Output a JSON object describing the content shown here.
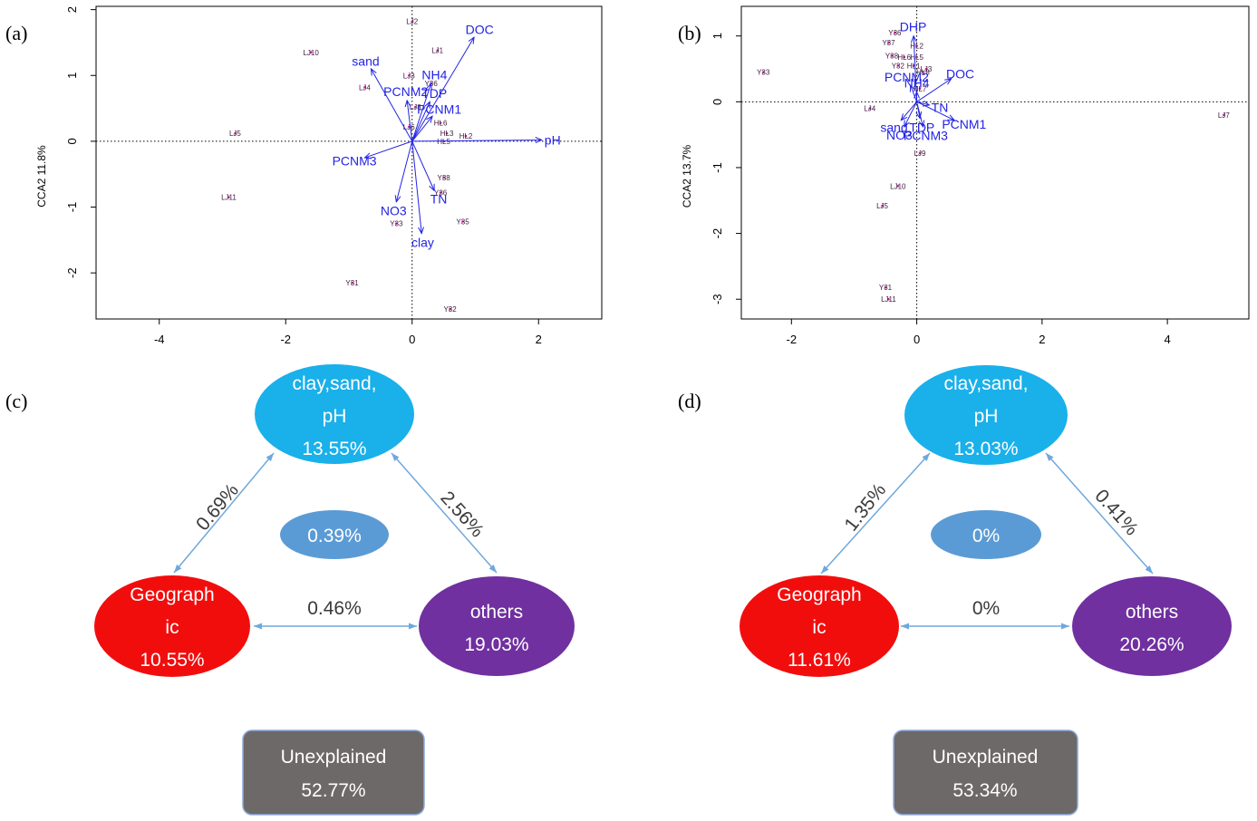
{
  "colors": {
    "env": "#2323e6",
    "site_text": "#3a1a3a",
    "site_dot": "#d01aa0",
    "soil": "#1ab0ea",
    "geo": "#f20d0d",
    "others": "#7030a0",
    "center": "#5b9bd5",
    "unexplained": "#6d6968",
    "connector": "#6fa8dc"
  },
  "chart_data": [
    {
      "panel": "(a)",
      "type": "scatter",
      "title": "",
      "xlabel": "",
      "ylabel": "CCA2 11.8%",
      "xlim": [
        -5,
        3
      ],
      "ylim": [
        -2.7,
        2.05
      ],
      "xticks": [
        -4,
        -2,
        0,
        2
      ],
      "yticks": [
        -2,
        -1,
        0,
        1,
        2
      ],
      "sites": [
        {
          "label": "LJ2",
          "x": 0.0,
          "y": 1.82
        },
        {
          "label": "LJ10",
          "x": -1.6,
          "y": 1.35
        },
        {
          "label": "LJ1",
          "x": 0.4,
          "y": 1.38
        },
        {
          "label": "LJ3",
          "x": -0.05,
          "y": 1.0
        },
        {
          "label": "LJ4",
          "x": -0.75,
          "y": 0.82
        },
        {
          "label": "Y36",
          "x": 0.3,
          "y": 0.88
        },
        {
          "label": "LJ8",
          "x": 0.05,
          "y": 0.52
        },
        {
          "label": "LJ6",
          "x": -0.05,
          "y": 0.22
        },
        {
          "label": "HL6",
          "x": 0.45,
          "y": 0.28
        },
        {
          "label": "HL3",
          "x": 0.55,
          "y": 0.12
        },
        {
          "label": "HL2",
          "x": 0.85,
          "y": 0.08
        },
        {
          "label": "HL5",
          "x": 0.5,
          "y": 0.0
        },
        {
          "label": "LJ5",
          "x": -2.8,
          "y": 0.12
        },
        {
          "label": "LJ11",
          "x": -2.9,
          "y": -0.85
        },
        {
          "label": "Y38",
          "x": 0.5,
          "y": -0.55
        },
        {
          "label": "Y36b",
          "x": 0.45,
          "y": -0.78
        },
        {
          "label": "Y33",
          "x": -0.25,
          "y": -1.25
        },
        {
          "label": "Y35",
          "x": 0.8,
          "y": -1.22
        },
        {
          "label": "Y31",
          "x": -0.95,
          "y": -2.15
        },
        {
          "label": "Y32",
          "x": 0.6,
          "y": -2.55
        }
      ],
      "arrows": [
        {
          "label": "DOC",
          "x": 0.98,
          "y": 1.58
        },
        {
          "label": "sand",
          "x": -0.65,
          "y": 1.1
        },
        {
          "label": "NH4",
          "x": 0.3,
          "y": 0.88
        },
        {
          "label": "PCNM2",
          "x": -0.08,
          "y": 0.62
        },
        {
          "label": "TDP",
          "x": 0.28,
          "y": 0.6
        },
        {
          "label": "PCNM1",
          "x": 0.32,
          "y": 0.38
        },
        {
          "label": "pH",
          "x": 2.05,
          "y": 0.02
        },
        {
          "label": "PCNM3",
          "x": -0.75,
          "y": -0.25
        },
        {
          "label": "TN",
          "x": 0.35,
          "y": -0.75
        },
        {
          "label": "NO3",
          "x": -0.25,
          "y": -0.92
        },
        {
          "label": "clay",
          "x": 0.15,
          "y": -1.4
        }
      ]
    },
    {
      "panel": "(b)",
      "type": "scatter",
      "title": "",
      "xlabel": "",
      "ylabel": "CCA2 13.7%",
      "xlim": [
        -2.8,
        5.3
      ],
      "ylim": [
        -3.3,
        1.45
      ],
      "xticks": [
        -2,
        0,
        2,
        4
      ],
      "yticks": [
        -3,
        -2,
        -1,
        0,
        1
      ],
      "sites": [
        {
          "label": "Y33",
          "x": -2.45,
          "y": 0.45
        },
        {
          "label": "LJ7",
          "x": 4.9,
          "y": -0.2
        },
        {
          "label": "Y36",
          "x": -0.35,
          "y": 1.05
        },
        {
          "label": "Y37",
          "x": -0.45,
          "y": 0.9
        },
        {
          "label": "HL2",
          "x": 0.0,
          "y": 0.85
        },
        {
          "label": "Y38",
          "x": -0.4,
          "y": 0.7
        },
        {
          "label": "HL6",
          "x": -0.2,
          "y": 0.68
        },
        {
          "label": "HL5",
          "x": 0.0,
          "y": 0.68
        },
        {
          "label": "Y32",
          "x": -0.3,
          "y": 0.55
        },
        {
          "label": "HL1",
          "x": -0.05,
          "y": 0.55
        },
        {
          "label": "HL8",
          "x": 0.1,
          "y": 0.45
        },
        {
          "label": "LJ3",
          "x": 0.15,
          "y": 0.5
        },
        {
          "label": "HL7",
          "x": 0.05,
          "y": 0.2
        },
        {
          "label": "LJ4",
          "x": -0.75,
          "y": -0.1
        },
        {
          "label": "LJ9",
          "x": 0.05,
          "y": -0.78
        },
        {
          "label": "LJ10",
          "x": -0.3,
          "y": -1.28
        },
        {
          "label": "LJ5",
          "x": -0.55,
          "y": -1.58
        },
        {
          "label": "Y31",
          "x": -0.5,
          "y": -2.82
        },
        {
          "label": "LJ11",
          "x": -0.45,
          "y": -3.0
        }
      ],
      "arrows": [
        {
          "label": "DHP",
          "x": -0.05,
          "y": 1.0
        },
        {
          "label": "DOC",
          "x": 0.55,
          "y": 0.35
        },
        {
          "label": "PCNM2",
          "x": -0.1,
          "y": 0.25
        },
        {
          "label": "NH4",
          "x": 0.0,
          "y": 0.15
        },
        {
          "label": "TN",
          "x": 0.2,
          "y": -0.05
        },
        {
          "label": "PCNM1",
          "x": 0.6,
          "y": -0.28
        },
        {
          "label": "sand",
          "x": -0.25,
          "y": -0.28
        },
        {
          "label": "TDP",
          "x": 0.05,
          "y": -0.25
        },
        {
          "label": "NO3",
          "x": -0.2,
          "y": -0.38
        },
        {
          "label": "PCNM3",
          "x": 0.1,
          "y": -0.38
        }
      ]
    }
  ],
  "diagrams": [
    {
      "panel": "(c)",
      "soil": {
        "line1": "clay,sand,",
        "line2": "pH",
        "value": "13.55%"
      },
      "geo": {
        "line1": "Geograph",
        "line2": "ic",
        "value": "10.55%"
      },
      "others": {
        "line1": "others",
        "value": "19.03%"
      },
      "center": "0.39%",
      "geo_soil": "0.69%",
      "soil_others": "2.56%",
      "geo_others": "0.46%",
      "unexplained": {
        "label": "Unexplained",
        "value": "52.77%"
      }
    },
    {
      "panel": "(d)",
      "soil": {
        "line1": "clay,sand,",
        "line2": "pH",
        "value": "13.03%"
      },
      "geo": {
        "line1": "Geograph",
        "line2": "ic",
        "value": "11.61%"
      },
      "others": {
        "line1": "others",
        "value": "20.26%"
      },
      "center": "0%",
      "geo_soil": "1.35%",
      "soil_others": "0.41%",
      "geo_others": "0%",
      "unexplained": {
        "label": "Unexplained",
        "value": "53.34%"
      }
    }
  ]
}
